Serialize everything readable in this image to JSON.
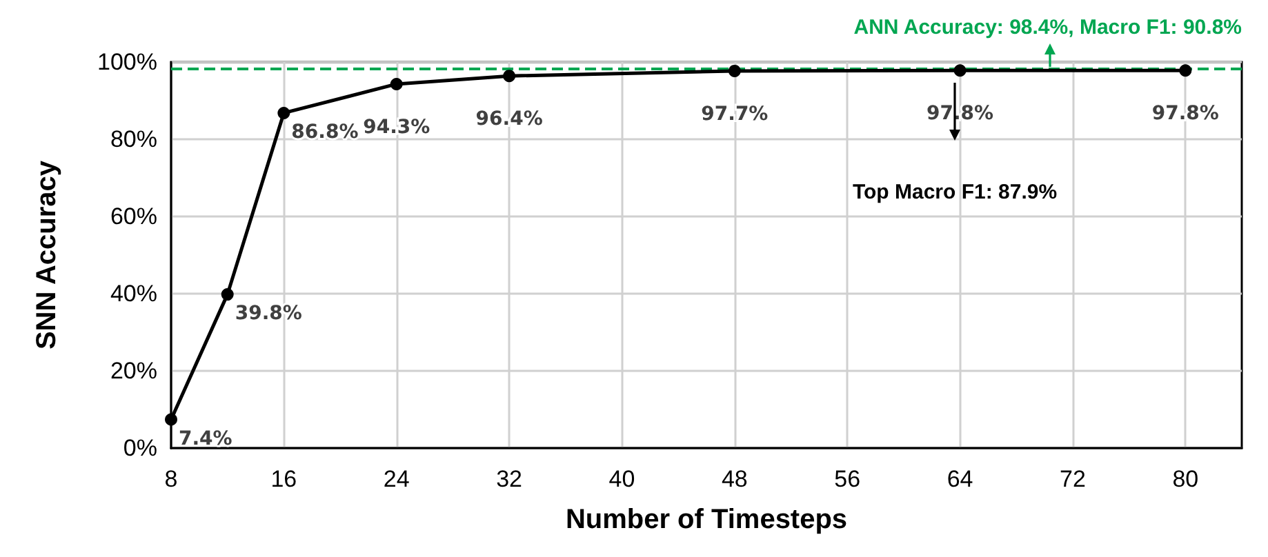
{
  "chart_data": {
    "type": "line",
    "xlabel": "Number of Timesteps",
    "ylabel": "SNN Accuracy",
    "x": [
      8,
      12,
      16,
      24,
      32,
      48,
      64,
      80
    ],
    "series": [
      {
        "color": "#000000",
        "values": [
          7.4,
          39.8,
          86.8,
          94.3,
          96.4,
          97.7,
          97.8,
          97.8
        ],
        "value_labels": [
          "7.4%",
          "39.8%",
          "86.8%",
          "94.3%",
          "96.4%",
          "97.7%",
          "97.8%",
          "97.8%"
        ]
      }
    ],
    "xlim": [
      8,
      84
    ],
    "xticks": [
      8,
      16,
      24,
      32,
      40,
      48,
      56,
      64,
      72,
      80
    ],
    "ylim": [
      0,
      100
    ],
    "yticks": [
      {
        "value": 0,
        "label": "0%"
      },
      {
        "value": 20,
        "label": "20%"
      },
      {
        "value": 40,
        "label": "40%"
      },
      {
        "value": 60,
        "label": "60%"
      },
      {
        "value": 80,
        "label": "80%"
      },
      {
        "value": 100,
        "label": "100%"
      }
    ],
    "ref_lines": [
      {
        "axis": "y",
        "value": 98.4,
        "label": "ANN Accuracy: 98.4%, Macro F1: 90.8%",
        "color": "#00a651",
        "line_style": "dashed"
      }
    ],
    "annotations": [
      "Top Macro F1: 87.9%"
    ],
    "grid": true,
    "marker": "circle",
    "line_style": "solid"
  }
}
